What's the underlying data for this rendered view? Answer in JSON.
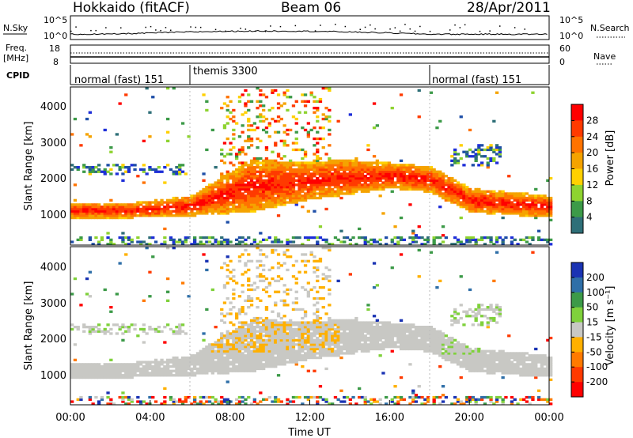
{
  "header": {
    "site": "Hokkaido (fitACF)",
    "beam": "Beam 06",
    "date": "28/Apr/2011"
  },
  "chart_data": [
    {
      "type": "line",
      "panel": "noise",
      "left_label": "N.Sky",
      "right_label": "N.Search",
      "left_ticks": [
        "10^5",
        "10^0"
      ],
      "right_ticks": [
        "10^5",
        "10^0"
      ]
    },
    {
      "type": "line",
      "panel": "frequency",
      "left_label_1": "Freq.",
      "left_label_2": "[MHz]",
      "left_ticks": [
        "18",
        "8"
      ],
      "right_label": "Nave",
      "right_ticks": [
        "60",
        "0"
      ],
      "freq_mhz_approx": 11.0
    },
    {
      "type": "table",
      "panel": "cpid",
      "label": "CPID",
      "segments": [
        {
          "label": "normal (fast) 151",
          "start_hour": 0,
          "end_hour": 6
        },
        {
          "label": "themis 3300",
          "start_hour": 6,
          "end_hour": 18
        },
        {
          "label": "normal (fast) 151",
          "start_hour": 18,
          "end_hour": 24
        }
      ]
    },
    {
      "type": "heatmap",
      "panel": "power",
      "ylabel": "Slant Range [km]",
      "yticks": [
        1000,
        2000,
        3000,
        4000
      ],
      "ylim": [
        180,
        4500
      ],
      "xlim_hours": [
        0,
        24
      ],
      "colorbar_label": "Power [dB]",
      "colorbar_ticks": [
        "28",
        "24",
        "20",
        "16",
        "12",
        "8",
        "4"
      ],
      "colors": [
        "#ff0000",
        "#ff3a00",
        "#ff7300",
        "#f5a300",
        "#ffd000",
        "#8ed330",
        "#3c9a48",
        "#2e6f78",
        "#1f4fa8",
        "#1e2fd8"
      ],
      "main_band": [
        {
          "hour": 0,
          "range_low_km": 900,
          "range_high_km": 1300
        },
        {
          "hour": 3,
          "range_low_km": 900,
          "range_high_km": 1300
        },
        {
          "hour": 6,
          "range_low_km": 950,
          "range_high_km": 1500
        },
        {
          "hour": 9,
          "range_low_km": 1050,
          "range_high_km": 2500
        },
        {
          "hour": 12,
          "range_low_km": 1400,
          "range_high_km": 2400
        },
        {
          "hour": 13.5,
          "range_low_km": 1500,
          "range_high_km": 2500
        },
        {
          "hour": 16,
          "range_low_km": 1700,
          "range_high_km": 2400
        },
        {
          "hour": 18,
          "range_low_km": 1600,
          "range_high_km": 2300
        },
        {
          "hour": 20,
          "range_low_km": 1050,
          "range_high_km": 1700
        },
        {
          "hour": 24,
          "range_low_km": 900,
          "range_high_km": 1500
        }
      ]
    },
    {
      "type": "heatmap",
      "panel": "velocity",
      "ylabel": "Slant Range [km]",
      "yticks": [
        1000,
        2000,
        3000,
        4000
      ],
      "ylim": [
        180,
        4500
      ],
      "xlabel": "Time UT",
      "xticks": [
        "00:00",
        "04:00",
        "08:00",
        "12:00",
        "16:00",
        "20:00",
        "00:00"
      ],
      "colorbar_label": "Velocity [m s⁻¹]",
      "colorbar_ticks": [
        "200",
        "100",
        "50",
        "15",
        "-15",
        "-50",
        "-100",
        "-200"
      ],
      "colors": [
        "#1a33b3",
        "#2f6fa8",
        "#3c9a48",
        "#7fd13b",
        "#c8c8c4",
        "#ffb000",
        "#ff7a00",
        "#ff3a00",
        "#ff0000"
      ],
      "ground_scatter_color": "#c8c8c4"
    }
  ]
}
